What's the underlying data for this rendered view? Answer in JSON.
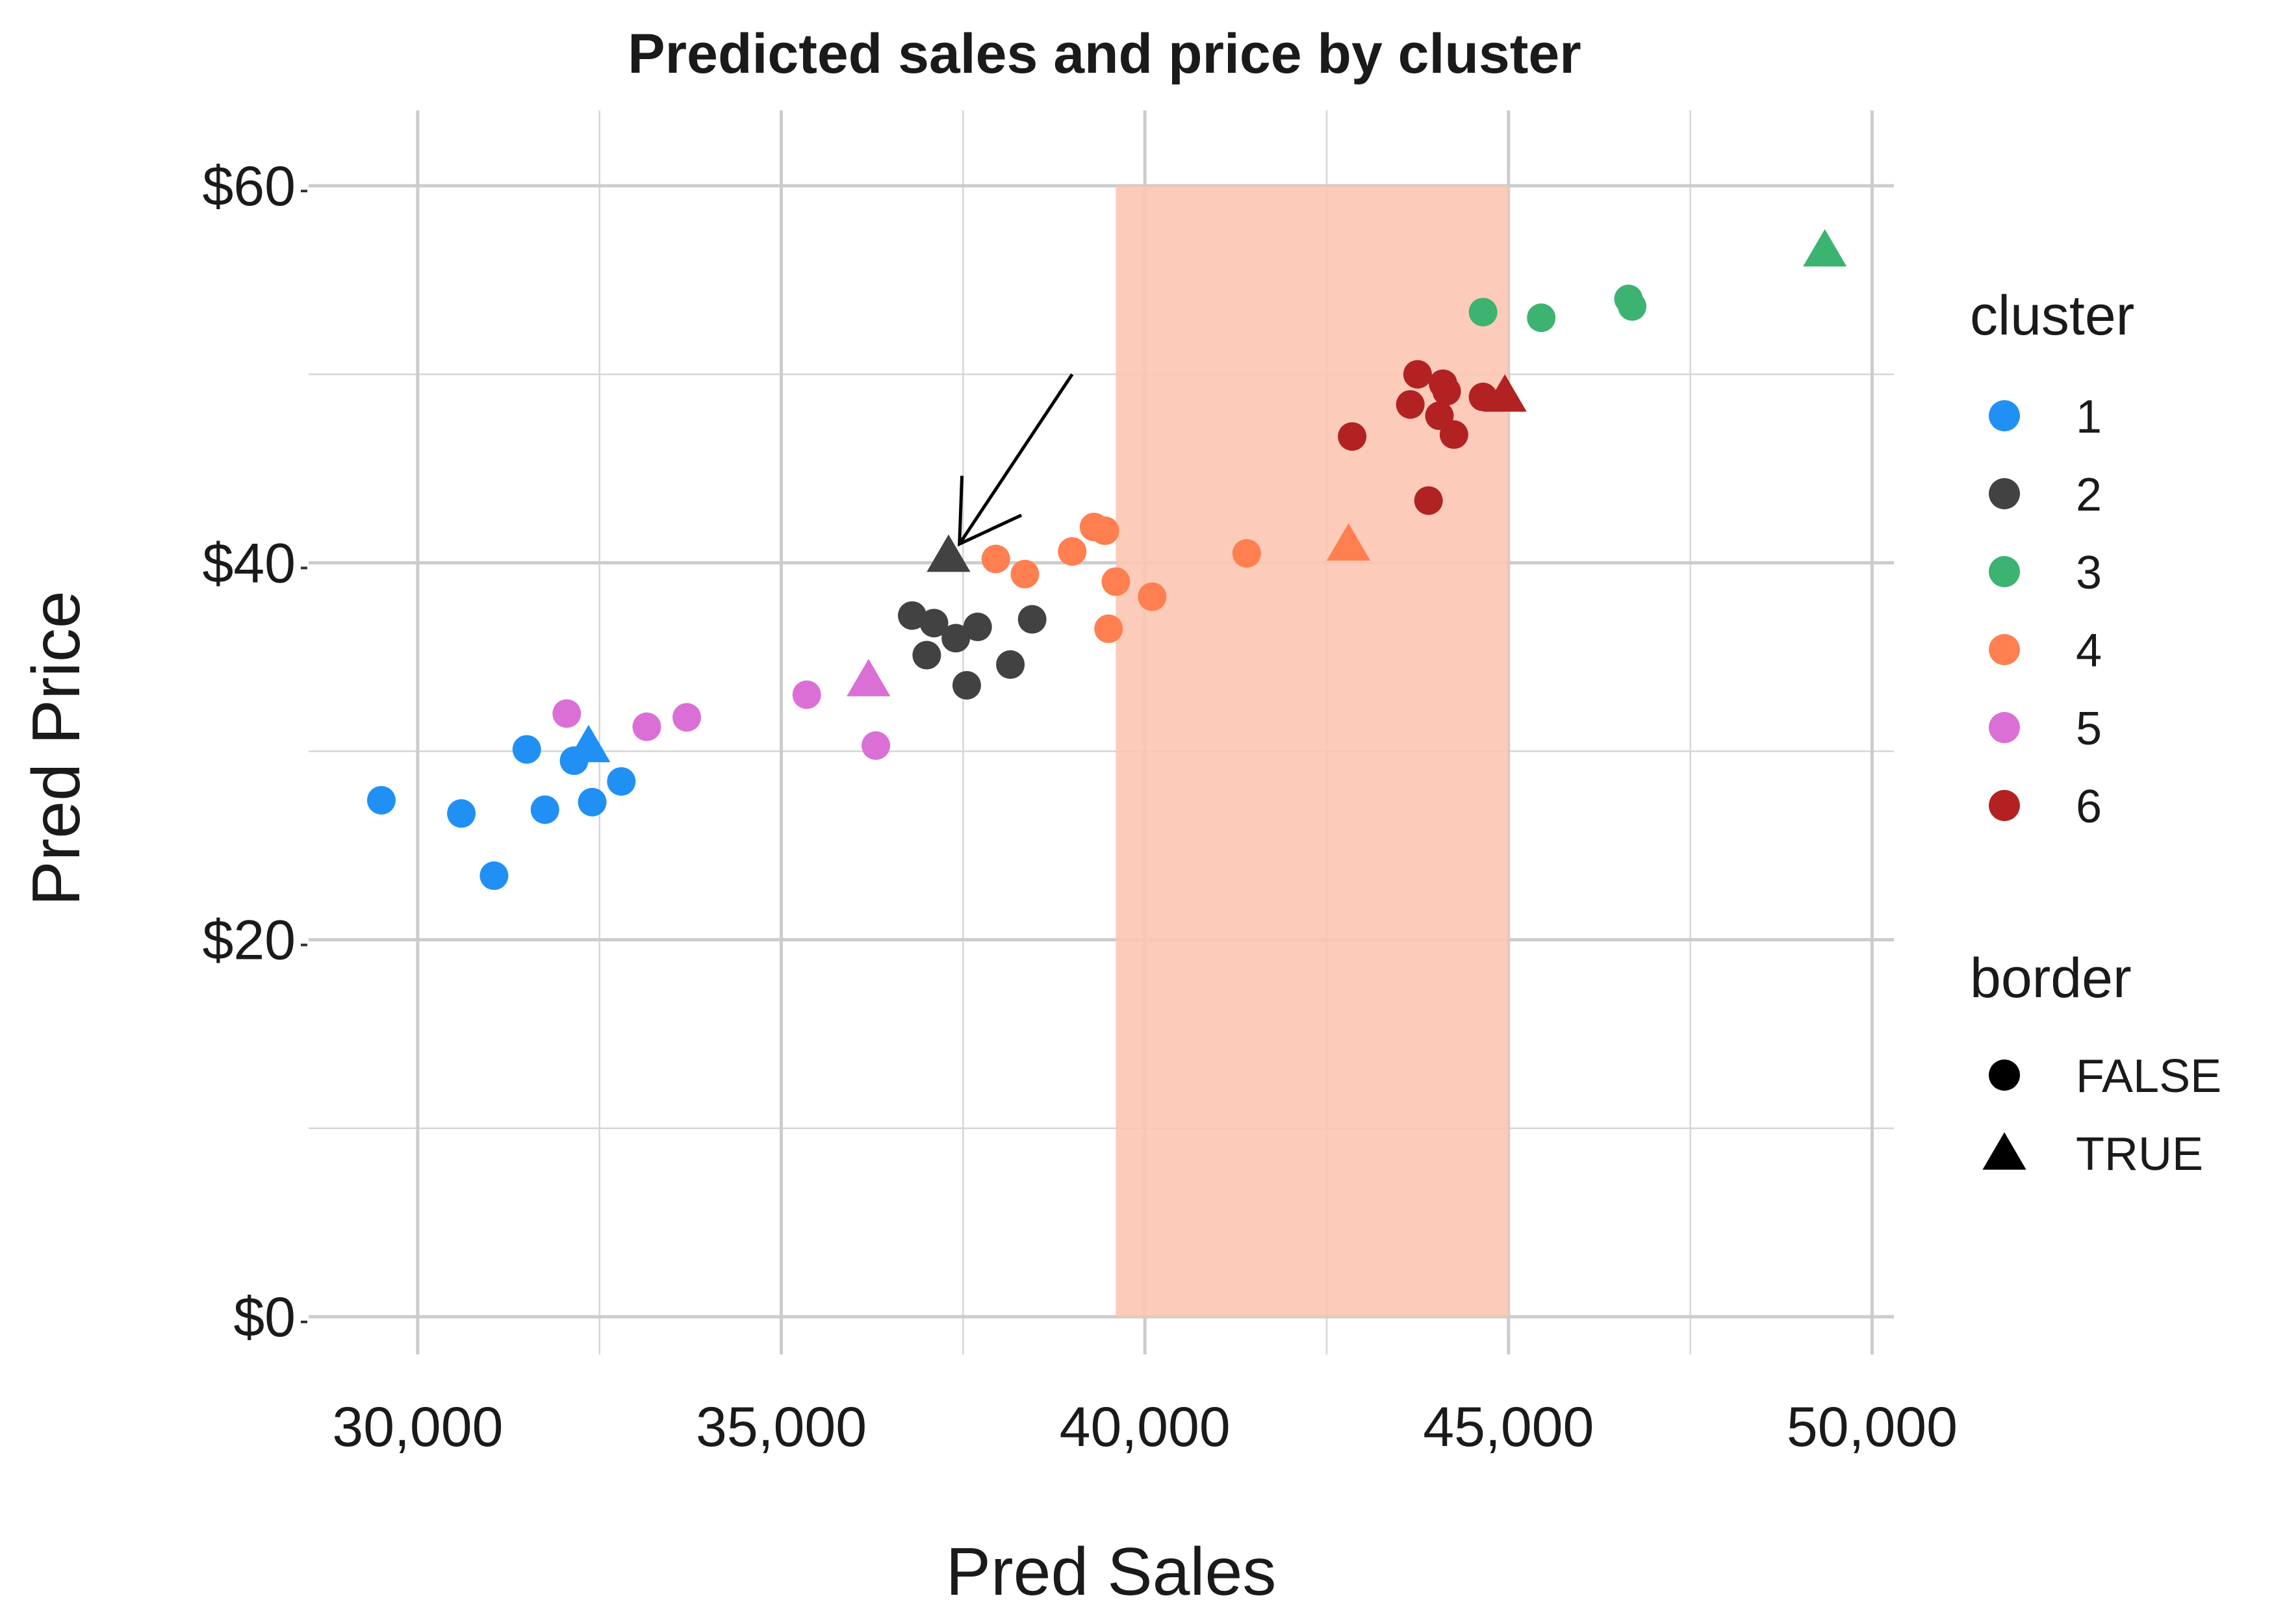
{
  "chart_data": {
    "type": "scatter",
    "title": "Predicted sales and price by cluster",
    "xlabel": "Pred Sales",
    "ylabel": "Pred Price",
    "xlim": [
      28500,
      50300
    ],
    "ylim": [
      -2,
      64
    ],
    "x_ticks": [
      30000,
      35000,
      40000,
      45000,
      50000
    ],
    "x_tick_labels": [
      "30,000",
      "35,000",
      "40,000",
      "45,000",
      "50,000"
    ],
    "y_ticks": [
      0,
      20,
      40,
      60
    ],
    "y_tick_labels": [
      "$0",
      "$20",
      "$40",
      "$60"
    ],
    "grid": true,
    "shaded_region": {
      "x_from": 39600,
      "x_to": 45000,
      "y_from": 0,
      "y_to": 60,
      "color": "#fcc5b1"
    },
    "annotation_arrow": {
      "from": [
        39000,
        50
      ],
      "to": [
        37450,
        41
      ]
    },
    "legends": [
      {
        "title": "cluster",
        "entries": [
          {
            "label": "1",
            "color": "#2090f5"
          },
          {
            "label": "2",
            "color": "#424242"
          },
          {
            "label": "3",
            "color": "#3cb371"
          },
          {
            "label": "4",
            "color": "#ff7f50"
          },
          {
            "label": "5",
            "color": "#da70d6"
          },
          {
            "label": "6",
            "color": "#b22222"
          }
        ]
      },
      {
        "title": "border",
        "entries": [
          {
            "label": "FALSE",
            "shape": "circle"
          },
          {
            "label": "TRUE",
            "shape": "triangle"
          }
        ]
      }
    ],
    "series": [
      {
        "cluster": "1",
        "color": "#2090f5",
        "points": [
          {
            "x": 29500,
            "y": 27.4,
            "border": false
          },
          {
            "x": 30600,
            "y": 26.7,
            "border": false
          },
          {
            "x": 31050,
            "y": 23.4,
            "border": false
          },
          {
            "x": 31500,
            "y": 30.1,
            "border": false
          },
          {
            "x": 31750,
            "y": 26.9,
            "border": false
          },
          {
            "x": 32150,
            "y": 29.5,
            "border": false
          },
          {
            "x": 32400,
            "y": 27.3,
            "border": false
          },
          {
            "x": 32800,
            "y": 28.4,
            "border": false
          },
          {
            "x": 32350,
            "y": 30.3,
            "border": true
          }
        ]
      },
      {
        "cluster": "2",
        "color": "#424242",
        "points": [
          {
            "x": 36800,
            "y": 37.2,
            "border": false
          },
          {
            "x": 37000,
            "y": 35.1,
            "border": false
          },
          {
            "x": 37100,
            "y": 36.8,
            "border": false
          },
          {
            "x": 37400,
            "y": 36.0,
            "border": false
          },
          {
            "x": 37550,
            "y": 33.5,
            "border": false
          },
          {
            "x": 37700,
            "y": 36.6,
            "border": false
          },
          {
            "x": 38150,
            "y": 34.6,
            "border": false
          },
          {
            "x": 38450,
            "y": 37.0,
            "border": false
          },
          {
            "x": 37300,
            "y": 40.4,
            "border": true
          }
        ]
      },
      {
        "cluster": "3",
        "color": "#3cb371",
        "points": [
          {
            "x": 44650,
            "y": 53.3,
            "border": false
          },
          {
            "x": 45450,
            "y": 53.0,
            "border": false
          },
          {
            "x": 46650,
            "y": 54.0,
            "border": false
          },
          {
            "x": 46700,
            "y": 53.6,
            "border": false
          },
          {
            "x": 49350,
            "y": 56.6,
            "border": true
          }
        ]
      },
      {
        "cluster": "4",
        "color": "#ff7f50",
        "points": [
          {
            "x": 37950,
            "y": 40.2,
            "border": false
          },
          {
            "x": 38350,
            "y": 39.4,
            "border": false
          },
          {
            "x": 39000,
            "y": 40.6,
            "border": false
          },
          {
            "x": 39300,
            "y": 41.9,
            "border": false
          },
          {
            "x": 39450,
            "y": 41.7,
            "border": false
          },
          {
            "x": 39500,
            "y": 36.5,
            "border": false
          },
          {
            "x": 39600,
            "y": 39.0,
            "border": false
          },
          {
            "x": 40100,
            "y": 38.2,
            "border": false
          },
          {
            "x": 41400,
            "y": 40.5,
            "border": false
          },
          {
            "x": 42800,
            "y": 41.0,
            "border": true
          }
        ]
      },
      {
        "cluster": "5",
        "color": "#da70d6",
        "points": [
          {
            "x": 32050,
            "y": 32.0,
            "border": false
          },
          {
            "x": 33150,
            "y": 31.3,
            "border": false
          },
          {
            "x": 33700,
            "y": 31.8,
            "border": false
          },
          {
            "x": 35350,
            "y": 33.0,
            "border": false
          },
          {
            "x": 36300,
            "y": 30.3,
            "border": false
          },
          {
            "x": 36200,
            "y": 33.8,
            "border": true
          }
        ]
      },
      {
        "cluster": "6",
        "color": "#b22222",
        "points": [
          {
            "x": 42850,
            "y": 46.7,
            "border": false
          },
          {
            "x": 43650,
            "y": 48.4,
            "border": false
          },
          {
            "x": 43750,
            "y": 50.0,
            "border": false
          },
          {
            "x": 43900,
            "y": 43.3,
            "border": false
          },
          {
            "x": 44050,
            "y": 47.8,
            "border": false
          },
          {
            "x": 44100,
            "y": 49.5,
            "border": false
          },
          {
            "x": 44150,
            "y": 49.1,
            "border": false
          },
          {
            "x": 44250,
            "y": 46.8,
            "border": false
          },
          {
            "x": 44650,
            "y": 48.8,
            "border": false
          },
          {
            "x": 44950,
            "y": 48.9,
            "border": true
          }
        ]
      }
    ]
  }
}
